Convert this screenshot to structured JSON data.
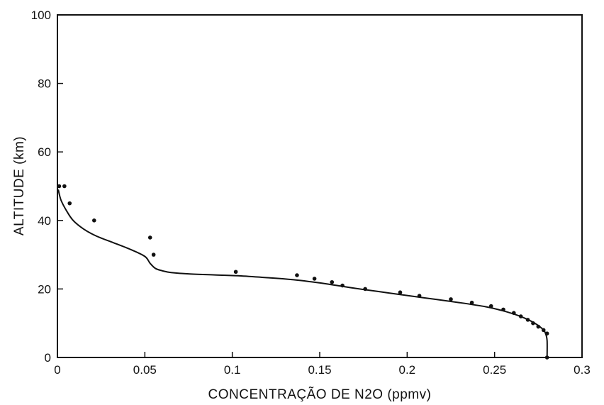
{
  "chart_data": {
    "type": "scatter",
    "title": "",
    "xlabel": "CONCENTRAÇÃO DE N2O (ppmv)",
    "ylabel": "ALTITUDE (km)",
    "xlim": [
      0,
      0.3
    ],
    "ylim": [
      0,
      100
    ],
    "x_ticks": [
      0,
      0.05,
      0.1,
      0.15,
      0.2,
      0.25,
      0.3
    ],
    "x_tick_labels": [
      "0",
      "0.05",
      "0.1",
      "0.15",
      "0.2",
      "0.25",
      "0.3"
    ],
    "y_ticks": [
      0,
      20,
      40,
      60,
      80,
      100
    ],
    "y_tick_labels": [
      "0",
      "20",
      "40",
      "60",
      "80",
      "100"
    ],
    "grid": false,
    "series": [
      {
        "type": "scatter",
        "x": [
          0.28,
          0.28,
          0.278,
          0.275,
          0.272,
          0.269,
          0.265,
          0.261,
          0.255,
          0.248,
          0.237,
          0.225,
          0.207,
          0.196,
          0.176,
          0.163,
          0.157,
          0.147,
          0.137,
          0.102,
          0.055,
          0.053,
          0.021,
          0.007,
          0.004,
          0.001
        ],
        "y": [
          0,
          7,
          8,
          9,
          10,
          11,
          12,
          13,
          14,
          15,
          16,
          17,
          18,
          19,
          20,
          21,
          22,
          23,
          24,
          25,
          30,
          35,
          40,
          45,
          50,
          50
        ]
      },
      {
        "type": "line",
        "x": [
          0.0005,
          0.002,
          0.005,
          0.009,
          0.015,
          0.022,
          0.032,
          0.042,
          0.05,
          0.053,
          0.056,
          0.06,
          0.065,
          0.075,
          0.09,
          0.105,
          0.12,
          0.135,
          0.145,
          0.155,
          0.17,
          0.19,
          0.21,
          0.23,
          0.245,
          0.255,
          0.262,
          0.268,
          0.273,
          0.277,
          0.279,
          0.28,
          0.28
        ],
        "y": [
          49,
          46,
          43,
          40,
          37.5,
          35.5,
          33.5,
          31.5,
          29.5,
          27.5,
          26,
          25.3,
          24.8,
          24.4,
          24.1,
          23.8,
          23.3,
          22.7,
          22.1,
          21.4,
          20.2,
          18.8,
          17.4,
          16,
          14.8,
          13.6,
          12.5,
          11.3,
          10,
          8.5,
          7.2,
          5,
          0
        ]
      }
    ]
  }
}
